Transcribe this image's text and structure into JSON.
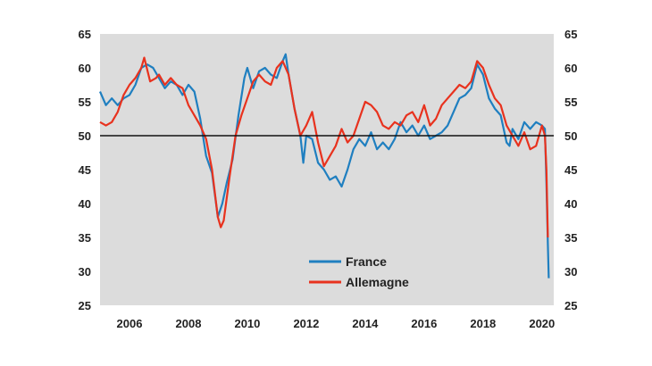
{
  "chart_data": {
    "type": "line",
    "title": "",
    "xlabel": "",
    "ylabel": "",
    "xlim": [
      2005.0,
      2020.4
    ],
    "ylim": [
      25,
      65
    ],
    "x_ticks": [
      "2006",
      "2008",
      "2010",
      "2012",
      "2014",
      "2016",
      "2018",
      "2020"
    ],
    "y_ticks": [
      "25",
      "30",
      "35",
      "40",
      "45",
      "50",
      "55",
      "60",
      "65"
    ],
    "reference_line": 50,
    "background": "#dcdcdc",
    "grid": false,
    "legend_position": "bottom-center",
    "series": [
      {
        "name": "France",
        "color": "#1f7fc0",
        "points": [
          [
            2005.0,
            56.5
          ],
          [
            2005.2,
            54.5
          ],
          [
            2005.4,
            55.5
          ],
          [
            2005.6,
            54.5
          ],
          [
            2005.8,
            55.5
          ],
          [
            2006.0,
            56.0
          ],
          [
            2006.2,
            57.5
          ],
          [
            2006.4,
            60.0
          ],
          [
            2006.6,
            60.5
          ],
          [
            2006.8,
            60.0
          ],
          [
            2007.0,
            58.5
          ],
          [
            2007.2,
            57.0
          ],
          [
            2007.4,
            58.0
          ],
          [
            2007.6,
            57.5
          ],
          [
            2007.8,
            56.0
          ],
          [
            2008.0,
            57.5
          ],
          [
            2008.2,
            56.5
          ],
          [
            2008.4,
            52.5
          ],
          [
            2008.6,
            47.0
          ],
          [
            2008.8,
            44.5
          ],
          [
            2009.0,
            38.0
          ],
          [
            2009.15,
            40.0
          ],
          [
            2009.3,
            43.0
          ],
          [
            2009.5,
            46.5
          ],
          [
            2009.7,
            53.0
          ],
          [
            2009.9,
            58.5
          ],
          [
            2010.0,
            60.0
          ],
          [
            2010.2,
            57.0
          ],
          [
            2010.4,
            59.5
          ],
          [
            2010.6,
            60.0
          ],
          [
            2010.8,
            59.0
          ],
          [
            2011.0,
            58.5
          ],
          [
            2011.2,
            61.0
          ],
          [
            2011.3,
            62.0
          ],
          [
            2011.4,
            59.0
          ],
          [
            2011.6,
            54.0
          ],
          [
            2011.8,
            50.0
          ],
          [
            2011.9,
            46.0
          ],
          [
            2012.0,
            50.0
          ],
          [
            2012.2,
            49.5
          ],
          [
            2012.4,
            46.0
          ],
          [
            2012.6,
            45.0
          ],
          [
            2012.8,
            43.5
          ],
          [
            2013.0,
            44.0
          ],
          [
            2013.2,
            42.5
          ],
          [
            2013.4,
            45.0
          ],
          [
            2013.6,
            48.0
          ],
          [
            2013.8,
            49.5
          ],
          [
            2014.0,
            48.5
          ],
          [
            2014.2,
            50.5
          ],
          [
            2014.4,
            48.0
          ],
          [
            2014.6,
            49.0
          ],
          [
            2014.8,
            48.0
          ],
          [
            2015.0,
            49.5
          ],
          [
            2015.2,
            52.0
          ],
          [
            2015.4,
            50.5
          ],
          [
            2015.6,
            51.5
          ],
          [
            2015.8,
            50.0
          ],
          [
            2016.0,
            51.5
          ],
          [
            2016.2,
            49.5
          ],
          [
            2016.4,
            50.0
          ],
          [
            2016.6,
            50.5
          ],
          [
            2016.8,
            51.5
          ],
          [
            2017.0,
            53.5
          ],
          [
            2017.2,
            55.5
          ],
          [
            2017.4,
            56.0
          ],
          [
            2017.6,
            57.0
          ],
          [
            2017.8,
            60.5
          ],
          [
            2018.0,
            59.0
          ],
          [
            2018.2,
            55.5
          ],
          [
            2018.4,
            54.0
          ],
          [
            2018.6,
            53.0
          ],
          [
            2018.8,
            49.0
          ],
          [
            2018.9,
            48.5
          ],
          [
            2019.0,
            51.0
          ],
          [
            2019.2,
            49.5
          ],
          [
            2019.4,
            52.0
          ],
          [
            2019.6,
            51.0
          ],
          [
            2019.8,
            52.0
          ],
          [
            2020.0,
            51.5
          ],
          [
            2020.1,
            51.0
          ],
          [
            2020.15,
            43.0
          ],
          [
            2020.2,
            34.0
          ],
          [
            2020.23,
            29.0
          ]
        ]
      },
      {
        "name": "Allemagne",
        "color": "#e8321e",
        "points": [
          [
            2005.0,
            52.0
          ],
          [
            2005.2,
            51.5
          ],
          [
            2005.4,
            52.0
          ],
          [
            2005.6,
            53.5
          ],
          [
            2005.8,
            56.0
          ],
          [
            2006.0,
            57.5
          ],
          [
            2006.2,
            58.5
          ],
          [
            2006.4,
            60.0
          ],
          [
            2006.5,
            61.5
          ],
          [
            2006.7,
            58.0
          ],
          [
            2006.9,
            58.5
          ],
          [
            2007.0,
            59.0
          ],
          [
            2007.2,
            57.5
          ],
          [
            2007.4,
            58.5
          ],
          [
            2007.6,
            57.5
          ],
          [
            2007.8,
            57.0
          ],
          [
            2008.0,
            54.5
          ],
          [
            2008.2,
            53.0
          ],
          [
            2008.4,
            51.5
          ],
          [
            2008.6,
            49.5
          ],
          [
            2008.8,
            45.0
          ],
          [
            2009.0,
            38.0
          ],
          [
            2009.1,
            36.5
          ],
          [
            2009.2,
            37.5
          ],
          [
            2009.4,
            44.0
          ],
          [
            2009.6,
            50.0
          ],
          [
            2009.8,
            53.0
          ],
          [
            2010.0,
            55.5
          ],
          [
            2010.2,
            58.0
          ],
          [
            2010.4,
            59.0
          ],
          [
            2010.6,
            58.0
          ],
          [
            2010.8,
            57.5
          ],
          [
            2011.0,
            60.0
          ],
          [
            2011.2,
            61.0
          ],
          [
            2011.4,
            59.0
          ],
          [
            2011.6,
            54.0
          ],
          [
            2011.8,
            50.0
          ],
          [
            2012.0,
            51.5
          ],
          [
            2012.2,
            53.5
          ],
          [
            2012.4,
            49.0
          ],
          [
            2012.6,
            45.5
          ],
          [
            2012.8,
            47.0
          ],
          [
            2013.0,
            48.5
          ],
          [
            2013.2,
            51.0
          ],
          [
            2013.4,
            49.0
          ],
          [
            2013.6,
            50.0
          ],
          [
            2013.8,
            52.5
          ],
          [
            2014.0,
            55.0
          ],
          [
            2014.2,
            54.5
          ],
          [
            2014.4,
            53.5
          ],
          [
            2014.6,
            51.5
          ],
          [
            2014.8,
            51.0
          ],
          [
            2015.0,
            52.0
          ],
          [
            2015.2,
            51.5
          ],
          [
            2015.4,
            53.0
          ],
          [
            2015.6,
            53.5
          ],
          [
            2015.8,
            52.0
          ],
          [
            2016.0,
            54.5
          ],
          [
            2016.2,
            51.5
          ],
          [
            2016.4,
            52.5
          ],
          [
            2016.6,
            54.5
          ],
          [
            2016.8,
            55.5
          ],
          [
            2017.0,
            56.5
          ],
          [
            2017.2,
            57.5
          ],
          [
            2017.4,
            57.0
          ],
          [
            2017.6,
            58.0
          ],
          [
            2017.8,
            61.0
          ],
          [
            2018.0,
            60.0
          ],
          [
            2018.2,
            57.5
          ],
          [
            2018.4,
            55.5
          ],
          [
            2018.6,
            54.5
          ],
          [
            2018.8,
            51.5
          ],
          [
            2019.0,
            50.0
          ],
          [
            2019.2,
            48.5
          ],
          [
            2019.4,
            50.5
          ],
          [
            2019.6,
            48.0
          ],
          [
            2019.8,
            48.5
          ],
          [
            2020.0,
            51.5
          ],
          [
            2020.1,
            50.0
          ],
          [
            2020.15,
            45.0
          ],
          [
            2020.2,
            35.0
          ]
        ]
      }
    ]
  }
}
